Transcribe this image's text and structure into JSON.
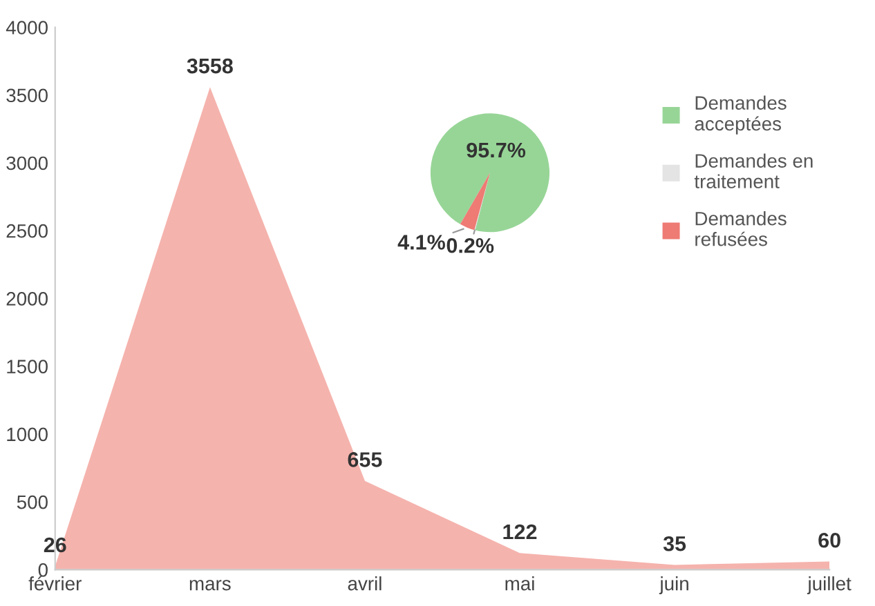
{
  "chart_data": [
    {
      "type": "area",
      "categories": [
        "février",
        "mars",
        "avril",
        "mai",
        "juin",
        "juillet"
      ],
      "series": [
        {
          "color": "#f5b3ad",
          "values": [
            26,
            3558,
            655,
            122,
            35,
            60
          ]
        }
      ],
      "ylim": [
        0,
        4000
      ],
      "yticks": [
        0,
        500,
        1000,
        1500,
        2000,
        2500,
        3000,
        3500,
        4000
      ],
      "grid": false,
      "data_labels": true
    },
    {
      "type": "pie",
      "categories": [
        "Demandes\nacceptées",
        "Demandes en\ntraitement",
        "Demandes\nrefusées"
      ],
      "values": [
        95.7,
        0.2,
        4.1
      ],
      "colors": [
        "#97d597",
        "#e4e4e4",
        "#ee7b74"
      ],
      "value_labels": [
        "95.7%",
        "0.2%",
        "4.1%"
      ],
      "legend": "right"
    }
  ]
}
